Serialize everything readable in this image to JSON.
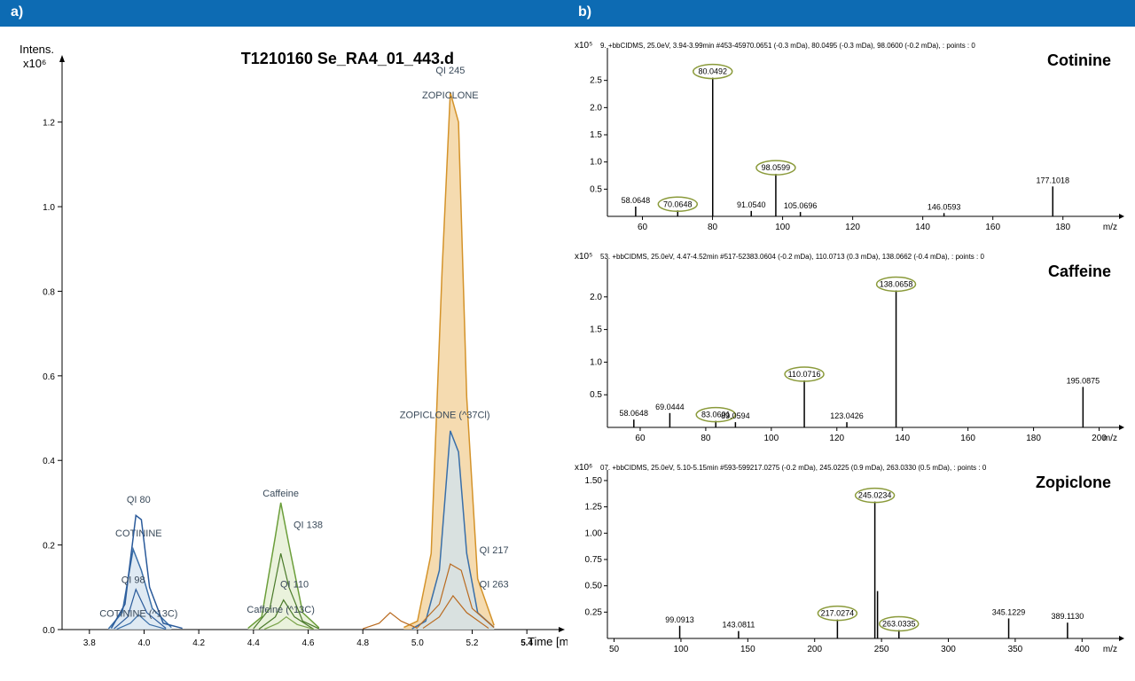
{
  "header": {
    "a": "a)",
    "b": "b)"
  },
  "chrom": {
    "title": "T1210160 Se_RA4_01_443.d",
    "y_label": "Intens.",
    "y_mult": "x10⁶",
    "x_label": "Time [min]",
    "xlim": [
      3.7,
      5.5
    ],
    "xticks": [
      3.8,
      4.0,
      4.2,
      4.4,
      4.6,
      4.8,
      5.0,
      5.2,
      5.4
    ],
    "xtick_bold": 5.4,
    "ylim": [
      0,
      1.3
    ],
    "yticks": [
      0.0,
      0.2,
      0.4,
      0.6,
      0.8,
      1.0,
      1.2
    ],
    "plot_bg": "#ffffff",
    "axis_color": "#000000",
    "traces": [
      {
        "label": "QI 245 ZOPICLONE",
        "label_x": 5.12,
        "label_y": 1.3,
        "lines": [
          "QI 245",
          "ZOPICLONE"
        ],
        "color": "#d4932a",
        "fill": "#f2cf96",
        "width": 1.5,
        "points": [
          [
            4.95,
            0.005
          ],
          [
            5.0,
            0.02
          ],
          [
            5.05,
            0.18
          ],
          [
            5.09,
            0.85
          ],
          [
            5.12,
            1.27
          ],
          [
            5.15,
            1.2
          ],
          [
            5.18,
            0.55
          ],
          [
            5.22,
            0.12
          ],
          [
            5.28,
            0.01
          ]
        ]
      },
      {
        "label": "ZOPICLONE (^37Cl)",
        "label_x": 5.1,
        "label_y": 0.5,
        "lines": [
          "ZOPICLONE (^37Cl)"
        ],
        "color": "#3a6fa8",
        "fill": "#cfe3f0",
        "width": 1.5,
        "points": [
          [
            4.98,
            0.002
          ],
          [
            5.03,
            0.02
          ],
          [
            5.08,
            0.14
          ],
          [
            5.12,
            0.47
          ],
          [
            5.15,
            0.42
          ],
          [
            5.18,
            0.18
          ],
          [
            5.22,
            0.04
          ],
          [
            5.28,
            0.005
          ]
        ]
      },
      {
        "label": "QI 217",
        "label_x": 5.28,
        "label_y": 0.18,
        "lines": [
          "QI 217"
        ],
        "color": "#b96a1f",
        "fill": "none",
        "width": 1.2,
        "points": [
          [
            5.0,
            0.005
          ],
          [
            5.08,
            0.06
          ],
          [
            5.12,
            0.155
          ],
          [
            5.16,
            0.14
          ],
          [
            5.2,
            0.05
          ],
          [
            5.28,
            0.005
          ]
        ]
      },
      {
        "label": "QI 263",
        "label_x": 5.28,
        "label_y": 0.1,
        "lines": [
          "QI 263"
        ],
        "color": "#b96a1f",
        "fill": "none",
        "width": 1.2,
        "points": [
          [
            5.02,
            0.003
          ],
          [
            5.08,
            0.03
          ],
          [
            5.13,
            0.08
          ],
          [
            5.18,
            0.04
          ],
          [
            5.26,
            0.003
          ]
        ]
      },
      {
        "label": "Caffeine",
        "label_x": 4.5,
        "label_y": 0.315,
        "lines": [
          "Caffeine"
        ],
        "color": "#6b9e3a",
        "fill": "#e3edd0",
        "width": 1.5,
        "points": [
          [
            4.38,
            0.003
          ],
          [
            4.43,
            0.03
          ],
          [
            4.48,
            0.22
          ],
          [
            4.5,
            0.3
          ],
          [
            4.53,
            0.2
          ],
          [
            4.58,
            0.04
          ],
          [
            4.64,
            0.004
          ]
        ]
      },
      {
        "label": "QI 138",
        "label_x": 4.6,
        "label_y": 0.24,
        "lines": [
          "QI 138"
        ],
        "color": "#4a7a2a",
        "fill": "none",
        "width": 1.2,
        "points": [
          [
            4.4,
            0.002
          ],
          [
            4.46,
            0.05
          ],
          [
            4.5,
            0.18
          ],
          [
            4.53,
            0.1
          ],
          [
            4.58,
            0.02
          ],
          [
            4.64,
            0.002
          ]
        ]
      },
      {
        "label": "QI 110",
        "label_x": 4.55,
        "label_y": 0.1,
        "lines": [
          "QI 110"
        ],
        "color": "#4a7a2a",
        "fill": "none",
        "width": 1.2,
        "points": [
          [
            4.42,
            0.001
          ],
          [
            4.48,
            0.03
          ],
          [
            4.51,
            0.07
          ],
          [
            4.55,
            0.03
          ],
          [
            4.62,
            0.001
          ]
        ]
      },
      {
        "label": "Caffeine (^13C)",
        "label_x": 4.5,
        "label_y": 0.04,
        "lines": [
          "Caffeine (^13C)"
        ],
        "color": "#7aa34a",
        "fill": "none",
        "width": 1.2,
        "points": [
          [
            4.44,
            0.001
          ],
          [
            4.49,
            0.015
          ],
          [
            4.52,
            0.03
          ],
          [
            4.56,
            0.012
          ],
          [
            4.62,
            0.001
          ]
        ]
      },
      {
        "label": "QI 80",
        "label_x": 3.98,
        "label_y": 0.3,
        "lines": [
          "QI 80"
        ],
        "color": "#2a5a9a",
        "fill": "none",
        "width": 1.5,
        "points": [
          [
            3.88,
            0.003
          ],
          [
            3.93,
            0.06
          ],
          [
            3.97,
            0.27
          ],
          [
            3.99,
            0.26
          ],
          [
            4.02,
            0.1
          ],
          [
            4.07,
            0.015
          ],
          [
            4.14,
            0.003
          ]
        ]
      },
      {
        "label": "COTININE",
        "label_x": 3.98,
        "label_y": 0.22,
        "lines": [
          "COTININE"
        ],
        "color": "#3a6fa8",
        "fill": "#d4e3ef",
        "width": 1.5,
        "points": [
          [
            3.87,
            0.002
          ],
          [
            3.92,
            0.04
          ],
          [
            3.96,
            0.19
          ],
          [
            3.99,
            0.14
          ],
          [
            4.03,
            0.05
          ],
          [
            4.1,
            0.005
          ]
        ]
      },
      {
        "label": "QI 98",
        "label_x": 3.96,
        "label_y": 0.11,
        "lines": [
          "QI 98"
        ],
        "color": "#2a5a9a",
        "fill": "none",
        "width": 1.2,
        "points": [
          [
            3.89,
            0.002
          ],
          [
            3.94,
            0.03
          ],
          [
            3.97,
            0.095
          ],
          [
            4.01,
            0.04
          ],
          [
            4.08,
            0.003
          ]
        ]
      },
      {
        "label": "COTININE (^13C)",
        "label_x": 3.98,
        "label_y": 0.03,
        "lines": [
          "COTININE (^13C)"
        ],
        "color": "#3a6fa8",
        "fill": "none",
        "width": 1.2,
        "points": [
          [
            3.9,
            0.001
          ],
          [
            3.95,
            0.015
          ],
          [
            3.98,
            0.035
          ],
          [
            4.02,
            0.012
          ],
          [
            4.08,
            0.001
          ]
        ]
      },
      {
        "label": "",
        "label_x": 0,
        "label_y": 0,
        "lines": [],
        "color": "#b96a1f",
        "fill": "none",
        "width": 1.2,
        "points": [
          [
            4.8,
            0.002
          ],
          [
            4.86,
            0.015
          ],
          [
            4.9,
            0.04
          ],
          [
            4.94,
            0.02
          ],
          [
            5.0,
            0.003
          ]
        ]
      }
    ]
  },
  "ms": [
    {
      "compound": "Cotinine",
      "src": "9.    +bbCIDMS, 25.0eV, 3.94-3.99min #453-45970.0651 (-0.3 mDa), 80.0495 (-0.3 mDa), 98.0600 (-0.2 mDa), : points : 0",
      "y_mult": "x10⁵",
      "ylim": [
        0,
        3.0
      ],
      "yticks": [
        0.5,
        1.0,
        1.5,
        2.0,
        2.5
      ],
      "xlim": [
        50,
        195
      ],
      "xticks": [
        60,
        80,
        100,
        120,
        140,
        160,
        180
      ],
      "x_label": "m/z",
      "stick_color": "#000000",
      "peaks": [
        {
          "mz": 58.0648,
          "i": 0.18,
          "lbl": "58.0648"
        },
        {
          "mz": 70.0648,
          "i": 0.11,
          "lbl": "70.0648",
          "circle": true
        },
        {
          "mz": 80.0492,
          "i": 2.55,
          "lbl": "80.0492",
          "circle": true
        },
        {
          "mz": 91.054,
          "i": 0.1,
          "lbl": "91.0540"
        },
        {
          "mz": 98.0599,
          "i": 0.78,
          "lbl": "98.0599",
          "circle": true
        },
        {
          "mz": 105.0696,
          "i": 0.08,
          "lbl": "105.0696"
        },
        {
          "mz": 146.0593,
          "i": 0.06,
          "lbl": "146.0593"
        },
        {
          "mz": 177.1018,
          "i": 0.55,
          "lbl": "177.1018"
        }
      ]
    },
    {
      "compound": "Caffeine",
      "src": "53.   +bbCIDMS, 25.0eV, 4.47-4.52min #517-52383.0604 (-0.2 mDa), 110.0713 (0.3 mDa), 138.0662 (-0.4 mDa), : points : 0",
      "y_mult": "x10⁵",
      "ylim": [
        0,
        2.5
      ],
      "yticks": [
        0.5,
        1.0,
        1.5,
        2.0
      ],
      "xlim": [
        50,
        205
      ],
      "xticks": [
        60,
        80,
        100,
        120,
        140,
        160,
        180,
        200
      ],
      "x_label": "m/z",
      "stick_color": "#000000",
      "peaks": [
        {
          "mz": 58.0648,
          "i": 0.12,
          "lbl": "58.0648"
        },
        {
          "mz": 69.0444,
          "i": 0.22,
          "lbl": "69.0444"
        },
        {
          "mz": 83.0601,
          "i": 0.1,
          "lbl": "83.0601",
          "circle": true
        },
        {
          "mz": 89.0594,
          "i": 0.08,
          "lbl": "89.0594"
        },
        {
          "mz": 110.0716,
          "i": 0.72,
          "lbl": "110.0716",
          "circle": true
        },
        {
          "mz": 123.0426,
          "i": 0.08,
          "lbl": "123.0426"
        },
        {
          "mz": 138.0658,
          "i": 2.1,
          "lbl": "138.0658",
          "circle": true
        },
        {
          "mz": 195.0875,
          "i": 0.62,
          "lbl": "195.0875"
        }
      ]
    },
    {
      "compound": "Zopiclone",
      "src": "07.   +bbCIDMS, 25.0eV, 5.10-5.15min #593-599217.0275 (-0.2 mDa), 245.0225 (0.9 mDa), 263.0330 (0.5 mDa), : points : 0",
      "y_mult": "x10⁶",
      "ylim": [
        0,
        1.55
      ],
      "yticks": [
        0.25,
        0.5,
        0.75,
        1.0,
        1.25,
        1.5
      ],
      "xlim": [
        45,
        425
      ],
      "xticks": [
        50,
        100,
        150,
        200,
        250,
        300,
        350,
        400
      ],
      "x_label": "m/z",
      "stick_color": "#000000",
      "peaks": [
        {
          "mz": 99.0913,
          "i": 0.12,
          "lbl": "99.0913"
        },
        {
          "mz": 143.0811,
          "i": 0.07,
          "lbl": "143.0811"
        },
        {
          "mz": 217.0274,
          "i": 0.18,
          "lbl": "217.0274",
          "circle": true
        },
        {
          "mz": 245.0234,
          "i": 1.3,
          "lbl": "245.0234",
          "circle": true
        },
        {
          "mz": 247.02,
          "i": 0.45,
          "lbl": ""
        },
        {
          "mz": 263.0335,
          "i": 0.08,
          "lbl": "263.0335",
          "circle": true
        },
        {
          "mz": 345.1229,
          "i": 0.19,
          "lbl": "345.1229"
        },
        {
          "mz": 389.113,
          "i": 0.15,
          "lbl": "389.1130"
        }
      ]
    }
  ]
}
